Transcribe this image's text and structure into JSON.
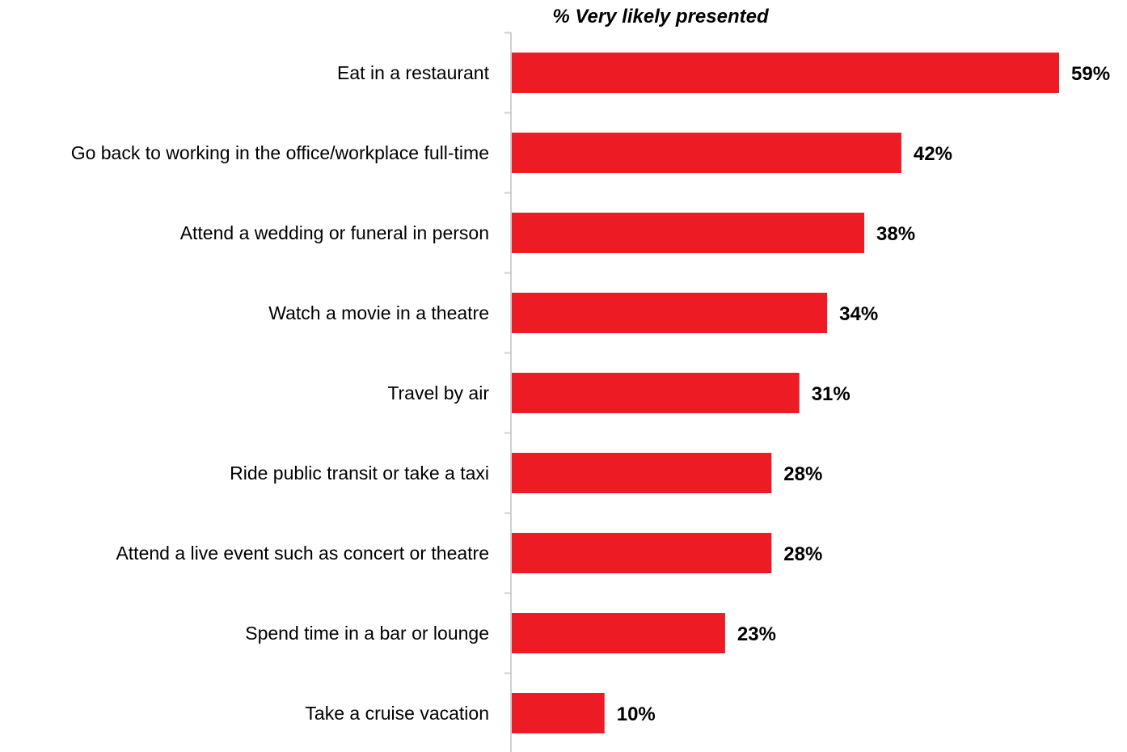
{
  "chart_data": {
    "type": "bar",
    "orientation": "horizontal",
    "title": "% Very likely presented",
    "categories": [
      "Eat in a restaurant",
      "Go back to working in the office/workplace full-time",
      "Attend a wedding or funeral in person",
      "Watch a movie in a theatre",
      "Travel by air",
      "Ride public transit or take a taxi",
      "Attend a live event such as concert or theatre",
      "Spend time in a bar or lounge",
      "Take a cruise vacation"
    ],
    "values": [
      59,
      42,
      38,
      34,
      31,
      28,
      28,
      23,
      10
    ],
    "value_labels": [
      "59%",
      "42%",
      "38%",
      "34%",
      "31%",
      "28%",
      "28%",
      "23%",
      "10%"
    ],
    "xlim": [
      0,
      60
    ],
    "grid": false,
    "bar_color": "#ED1C24"
  }
}
